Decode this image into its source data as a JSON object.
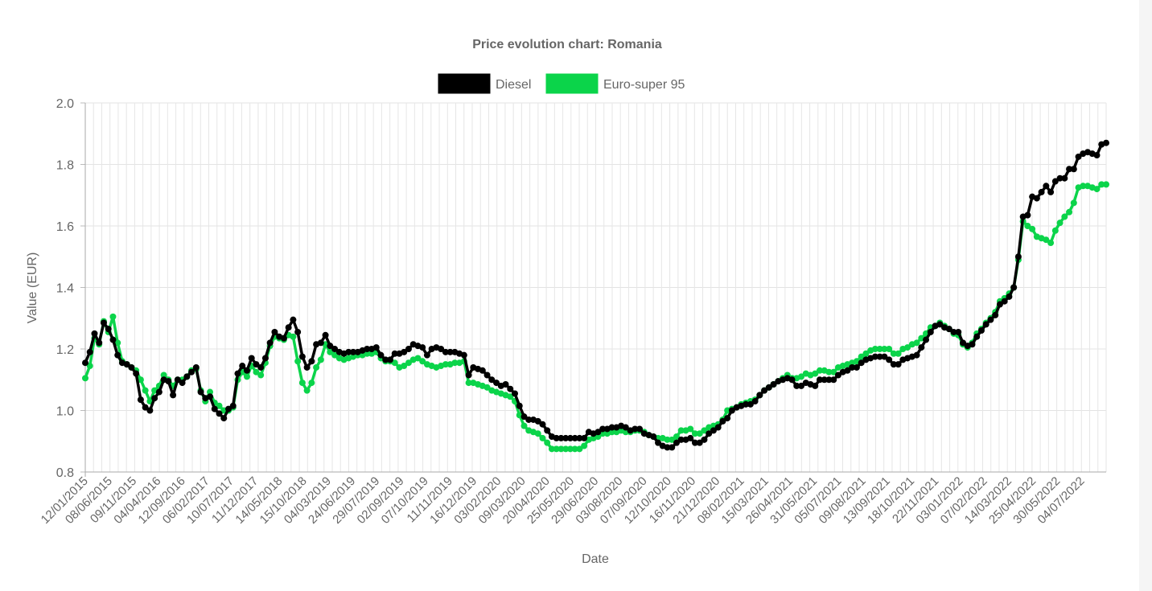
{
  "chart_data": {
    "type": "line",
    "title": "Price evolution chart: Romania",
    "xlabel": "Date",
    "ylabel": "Value (EUR)",
    "ylim": [
      0.8,
      2.0
    ],
    "yticks": [
      "0.8",
      "1.0",
      "1.2",
      "1.4",
      "1.6",
      "1.8",
      "2.0"
    ],
    "grid": true,
    "legend_position": "top",
    "x_tick_labels": [
      "12/01/2015",
      "08/06/2015",
      "09/11/2015",
      "04/04/2016",
      "12/09/2016",
      "06/02/2017",
      "10/07/2017",
      "11/12/2017",
      "14/05/2018",
      "15/10/2018",
      "04/03/2019",
      "24/06/2019",
      "29/07/2019",
      "02/09/2019",
      "07/10/2019",
      "11/11/2019",
      "16/12/2019",
      "03/02/2020",
      "09/03/2020",
      "20/04/2020",
      "25/05/2020",
      "29/06/2020",
      "03/08/2020",
      "07/09/2020",
      "12/10/2020",
      "16/11/2020",
      "21/12/2020",
      "08/02/2021",
      "15/03/2021",
      "26/04/2021",
      "31/05/2021",
      "05/07/2021",
      "09/08/2021",
      "13/09/2021",
      "18/10/2021",
      "22/11/2021",
      "03/01/2022",
      "07/02/2022",
      "14/03/2022",
      "25/04/2022",
      "30/05/2022",
      "04/07/2022"
    ],
    "series": [
      {
        "name": "Diesel",
        "color": "#000000",
        "values": [
          1.155,
          1.19,
          1.25,
          1.22,
          1.285,
          1.265,
          1.23,
          1.18,
          1.155,
          1.15,
          1.14,
          1.12,
          1.035,
          1.01,
          1.0,
          1.04,
          1.06,
          1.1,
          1.095,
          1.05,
          1.1,
          1.09,
          1.11,
          1.125,
          1.14,
          1.06,
          1.04,
          1.045,
          1.005,
          0.99,
          0.975,
          1.005,
          1.015,
          1.12,
          1.145,
          1.13,
          1.17,
          1.15,
          1.14,
          1.17,
          1.22,
          1.255,
          1.24,
          1.235,
          1.27,
          1.295,
          1.255,
          1.175,
          1.14,
          1.16,
          1.215,
          1.22,
          1.245,
          1.21,
          1.2,
          1.19,
          1.185,
          1.19,
          1.19,
          1.19,
          1.195,
          1.2,
          1.2,
          1.205,
          1.18,
          1.165,
          1.165,
          1.185,
          1.185,
          1.19,
          1.2,
          1.215,
          1.21,
          1.205,
          1.18,
          1.2,
          1.205,
          1.2,
          1.19,
          1.19,
          1.19,
          1.185,
          1.18,
          1.115,
          1.14,
          1.135,
          1.13,
          1.115,
          1.1,
          1.09,
          1.08,
          1.085,
          1.07,
          1.055,
          1.015,
          0.98,
          0.97,
          0.97,
          0.965,
          0.955,
          0.935,
          0.915,
          0.91,
          0.91,
          0.91,
          0.91,
          0.91,
          0.91,
          0.91,
          0.93,
          0.925,
          0.93,
          0.94,
          0.94,
          0.945,
          0.945,
          0.95,
          0.945,
          0.935,
          0.94,
          0.94,
          0.925,
          0.92,
          0.915,
          0.895,
          0.885,
          0.88,
          0.88,
          0.895,
          0.905,
          0.905,
          0.91,
          0.895,
          0.895,
          0.905,
          0.925,
          0.935,
          0.945,
          0.965,
          0.975,
          1.0,
          1.01,
          1.015,
          1.02,
          1.02,
          1.03,
          1.05,
          1.065,
          1.075,
          1.085,
          1.095,
          1.1,
          1.105,
          1.1,
          1.08,
          1.08,
          1.09,
          1.085,
          1.08,
          1.1,
          1.1,
          1.1,
          1.1,
          1.115,
          1.125,
          1.13,
          1.14,
          1.14,
          1.155,
          1.165,
          1.17,
          1.175,
          1.175,
          1.175,
          1.165,
          1.15,
          1.15,
          1.165,
          1.17,
          1.175,
          1.18,
          1.205,
          1.23,
          1.255,
          1.275,
          1.28,
          1.27,
          1.265,
          1.255,
          1.255,
          1.22,
          1.21,
          1.215,
          1.24,
          1.26,
          1.28,
          1.295,
          1.31,
          1.345,
          1.355,
          1.37,
          1.4,
          1.5,
          1.63,
          1.635,
          1.695,
          1.69,
          1.71,
          1.73,
          1.71,
          1.745,
          1.755,
          1.755,
          1.785,
          1.785,
          1.825,
          1.835,
          1.84,
          1.835,
          1.83,
          1.865,
          1.87
        ]
      },
      {
        "name": "Euro-super 95",
        "color": "#0bd44a",
        "values": [
          1.105,
          1.145,
          1.235,
          1.215,
          1.29,
          1.255,
          1.305,
          1.22,
          1.16,
          1.15,
          1.14,
          1.13,
          1.1,
          1.065,
          1.03,
          1.065,
          1.08,
          1.115,
          1.1,
          1.08,
          1.1,
          1.1,
          1.11,
          1.13,
          1.135,
          1.065,
          1.03,
          1.06,
          1.025,
          1.015,
          1.0,
          1.0,
          1.01,
          1.1,
          1.125,
          1.11,
          1.145,
          1.125,
          1.115,
          1.155,
          1.21,
          1.24,
          1.235,
          1.23,
          1.245,
          1.24,
          1.16,
          1.09,
          1.065,
          1.09,
          1.14,
          1.165,
          1.215,
          1.19,
          1.18,
          1.17,
          1.165,
          1.17,
          1.175,
          1.18,
          1.18,
          1.185,
          1.185,
          1.19,
          1.17,
          1.16,
          1.16,
          1.155,
          1.14,
          1.145,
          1.155,
          1.165,
          1.17,
          1.16,
          1.15,
          1.145,
          1.14,
          1.145,
          1.15,
          1.15,
          1.155,
          1.155,
          1.16,
          1.09,
          1.09,
          1.085,
          1.08,
          1.075,
          1.065,
          1.06,
          1.055,
          1.05,
          1.045,
          1.03,
          0.985,
          0.95,
          0.935,
          0.93,
          0.925,
          0.91,
          0.895,
          0.875,
          0.875,
          0.875,
          0.875,
          0.875,
          0.875,
          0.875,
          0.885,
          0.905,
          0.91,
          0.915,
          0.925,
          0.925,
          0.93,
          0.93,
          0.935,
          0.93,
          0.93,
          0.935,
          0.935,
          0.93,
          0.92,
          0.915,
          0.91,
          0.91,
          0.905,
          0.905,
          0.915,
          0.935,
          0.935,
          0.94,
          0.925,
          0.925,
          0.935,
          0.945,
          0.95,
          0.955,
          0.97,
          1.0,
          1.005,
          1.01,
          1.02,
          1.025,
          1.03,
          1.035,
          1.05,
          1.065,
          1.075,
          1.085,
          1.095,
          1.105,
          1.115,
          1.105,
          1.105,
          1.11,
          1.12,
          1.115,
          1.12,
          1.13,
          1.13,
          1.125,
          1.125,
          1.14,
          1.145,
          1.15,
          1.155,
          1.16,
          1.175,
          1.185,
          1.195,
          1.2,
          1.2,
          1.2,
          1.2,
          1.185,
          1.185,
          1.2,
          1.205,
          1.215,
          1.22,
          1.235,
          1.25,
          1.27,
          1.275,
          1.285,
          1.275,
          1.265,
          1.25,
          1.245,
          1.215,
          1.205,
          1.22,
          1.25,
          1.265,
          1.285,
          1.3,
          1.32,
          1.355,
          1.365,
          1.38,
          1.4,
          1.49,
          1.615,
          1.6,
          1.59,
          1.565,
          1.56,
          1.555,
          1.545,
          1.585,
          1.61,
          1.63,
          1.645,
          1.675,
          1.725,
          1.73,
          1.73,
          1.725,
          1.72,
          1.735,
          1.735
        ]
      }
    ]
  }
}
